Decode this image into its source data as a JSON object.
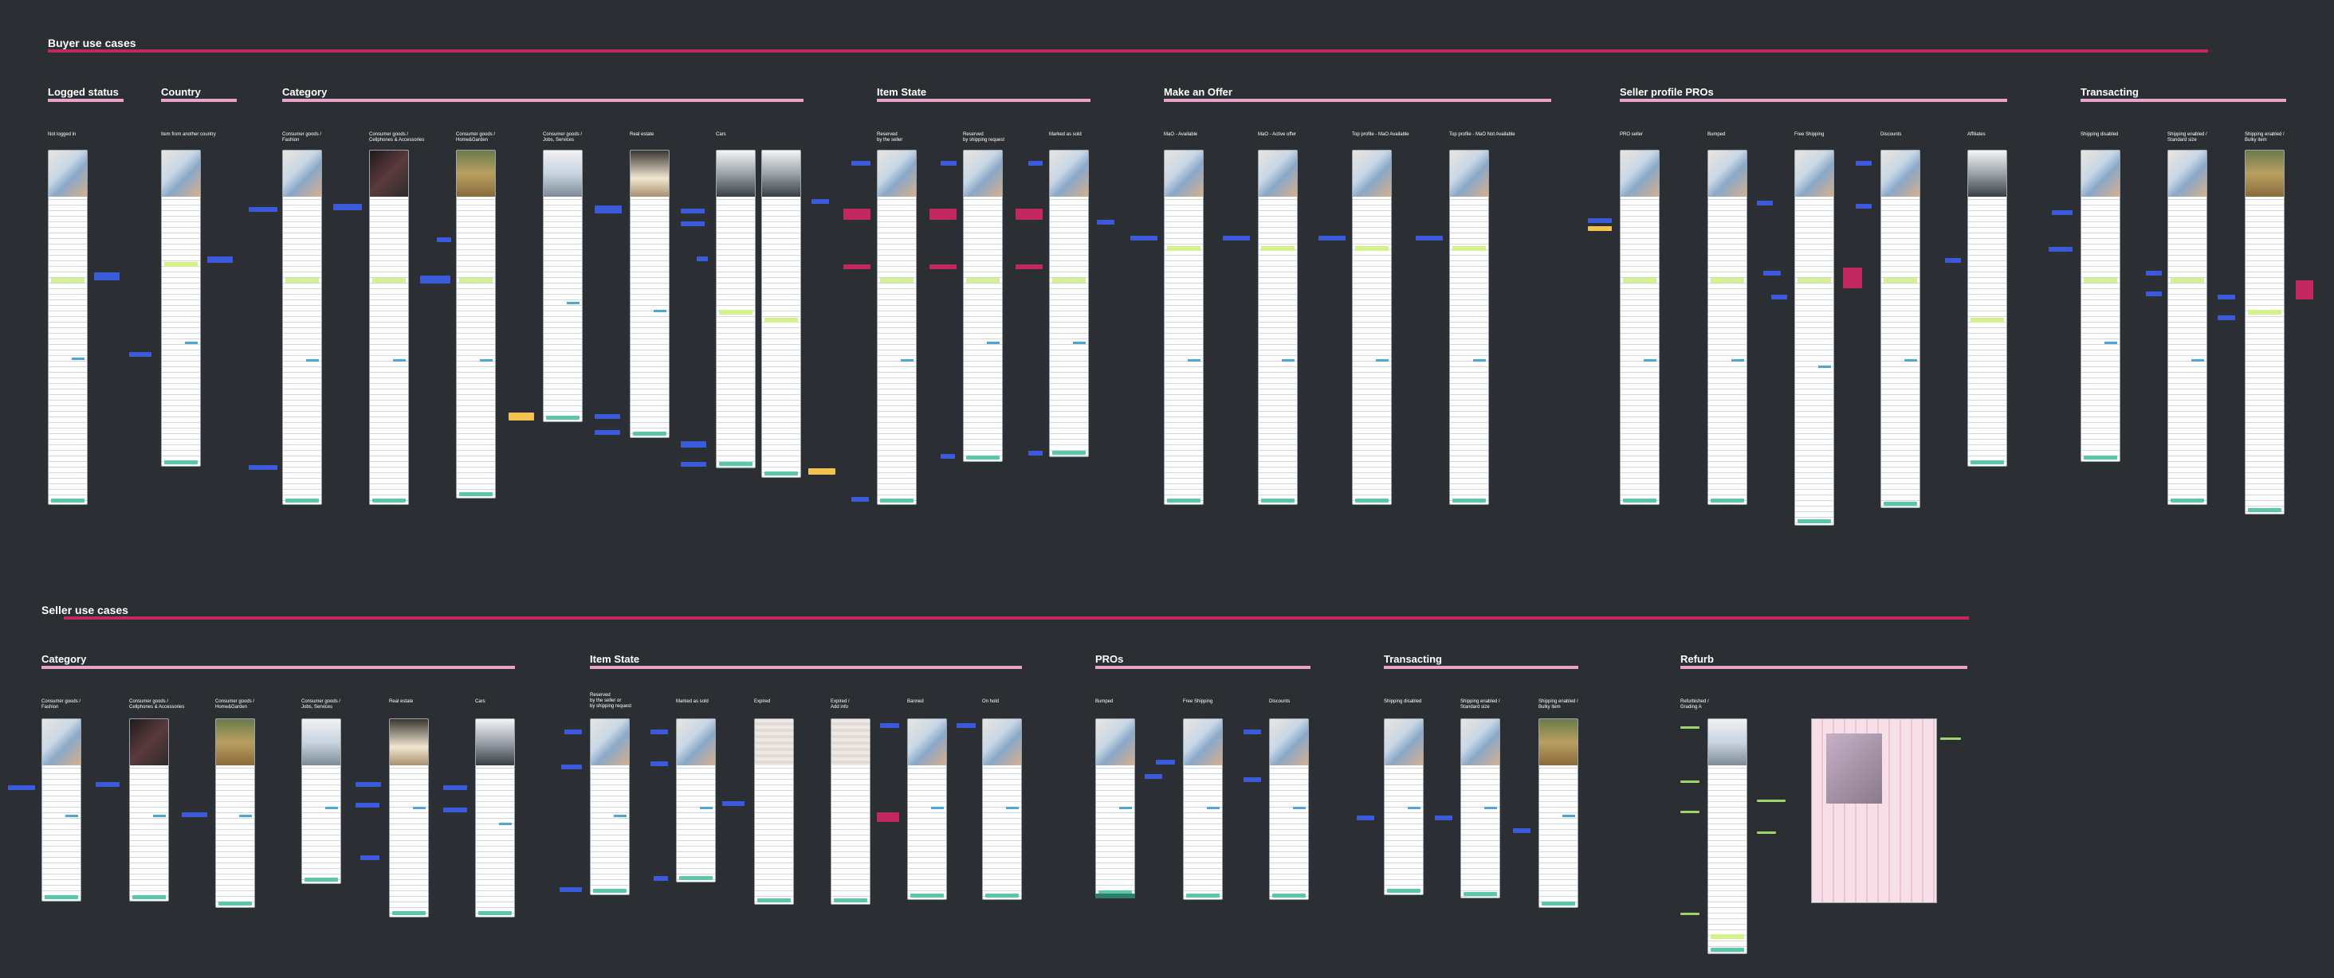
{
  "buyer": {
    "title": "Buyer use cases",
    "groups": [
      {
        "title": "Logged status",
        "screens": [
          "Not logged in"
        ]
      },
      {
        "title": "Country",
        "screens": [
          "Item from another country"
        ]
      },
      {
        "title": "Category",
        "screens": [
          "Consumer goods /\nFashion",
          "Consumer goods /\nCellphones & Accessories",
          "Consumer goods /\nHome&Garden",
          "Consumer goods /\nJobs, Services",
          "Real estate",
          "Cars"
        ]
      },
      {
        "title": "Item State",
        "screens": [
          "Reserved\nby the seller",
          "Reserved\nby shipping request",
          "Marked as sold"
        ]
      },
      {
        "title": "Make an Offer",
        "screens": [
          "MaO - Available",
          "MaO - Active offer",
          "Top profile - MaO Available",
          "Top profile - MaO Not Available"
        ]
      },
      {
        "title": "Seller profile PROs",
        "screens": [
          "PRO seller",
          "Bumped",
          "Free Shipping",
          "Discounts",
          "Affiliates"
        ]
      },
      {
        "title": "Transacting",
        "screens": [
          "Shipping disabled",
          "Shipping enabled /\nStandard size",
          "Shipping enabled /\nBulky item"
        ]
      }
    ]
  },
  "seller": {
    "title": "Seller use cases",
    "groups": [
      {
        "title": "Category",
        "screens": [
          "Consumer goods /\nFashion",
          "Consumer goods /\nCellphones & Accessories",
          "Consumer goods /\nHome&Garden",
          "Consumer goods /\nJobs, Services",
          "Real estate",
          "Cars"
        ]
      },
      {
        "title": "Item State",
        "screens": [
          "Reserved\nby the seller or\nby shipping request",
          "Marked as sold",
          "Expired",
          "Expired /\nAdd info",
          "Banned",
          "On hold"
        ]
      },
      {
        "title": "PROs",
        "screens": [
          "Bumped",
          "Free Shipping",
          "Discounts"
        ]
      },
      {
        "title": "Transacting",
        "screens": [
          "Shipping disabled",
          "Shipping enabled /\nStandard size",
          "Shipping enabled /\nBulky item"
        ]
      },
      {
        "title": "Refurb",
        "screens": [
          "Refurbished /\nGrading A"
        ]
      }
    ]
  },
  "colors": {
    "background": "#2b2f33",
    "section_bar": "#c2275f",
    "group_bar": "#e8a3c7",
    "note_blue": "#3b5bdb",
    "note_pink": "#c2275f",
    "note_yellow": "#f2c14e",
    "cta": "#5bc7a9"
  }
}
